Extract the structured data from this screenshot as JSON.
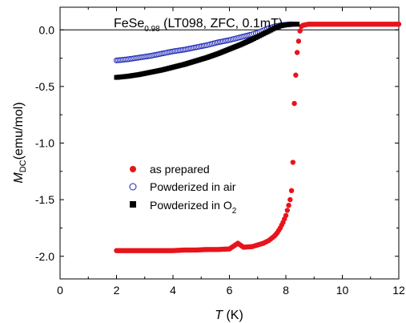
{
  "chart_data": {
    "type": "scatter",
    "title": {
      "base": "FeSe",
      "sub": "0.98",
      "rest": " (LT098, ZFC, 0.1mT)"
    },
    "xlabel": {
      "var": "T",
      "unit": " (K)"
    },
    "ylabel": {
      "var": "M",
      "sub": "DC",
      "unit": "(emu/mol)"
    },
    "xlim": [
      0,
      12
    ],
    "ylim": [
      -2.2,
      0.2
    ],
    "xticks": [
      0,
      2,
      4,
      6,
      8,
      10,
      12
    ],
    "xtick_labels": [
      "0",
      "2",
      "4",
      "6",
      "8",
      "10",
      "12"
    ],
    "yticks": [
      -2.0,
      -1.5,
      -1.0,
      -0.5,
      0.0
    ],
    "ytick_labels": [
      "-2.0",
      "-1.5",
      "-1.0",
      "-0.5",
      "0.0"
    ],
    "grid": false,
    "reference_line_y": 0,
    "legend_position": "center-left",
    "series": [
      {
        "name": "as prepared",
        "marker": "filled-circle",
        "color": "#e8141b",
        "x": [
          2.0,
          2.4,
          2.8,
          3.2,
          3.6,
          4.0,
          4.4,
          4.8,
          5.2,
          5.6,
          6.0,
          6.3,
          6.5,
          6.8,
          7.0,
          7.2,
          7.4,
          7.6,
          7.7,
          7.8,
          7.9,
          8.0,
          8.1,
          8.15,
          8.2,
          8.25,
          8.3,
          8.35,
          8.4,
          8.45,
          8.5,
          8.55,
          8.6,
          8.8,
          9.2,
          9.6,
          10.0,
          10.5,
          11.0,
          11.5,
          12.0
        ],
        "y": [
          -1.95,
          -1.95,
          -1.95,
          -1.95,
          -1.95,
          -1.95,
          -1.945,
          -1.945,
          -1.94,
          -1.94,
          -1.935,
          -1.885,
          -1.92,
          -1.915,
          -1.9,
          -1.885,
          -1.86,
          -1.82,
          -1.79,
          -1.75,
          -1.7,
          -1.64,
          -1.55,
          -1.5,
          -1.42,
          -1.17,
          -0.65,
          -0.4,
          -0.2,
          -0.1,
          -0.01,
          0.03,
          0.04,
          0.05,
          0.05,
          0.05,
          0.05,
          0.05,
          0.05,
          0.05,
          0.05
        ]
      },
      {
        "name": "Powderized in air",
        "marker": "open-circle",
        "color": "#1a23b5",
        "x": [
          2.0,
          2.4,
          2.8,
          3.2,
          3.6,
          4.0,
          4.4,
          4.8,
          5.2,
          5.6,
          6.0,
          6.4,
          6.8,
          7.0,
          7.2,
          7.4,
          7.6,
          7.8,
          8.0,
          8.2
        ],
        "y": [
          -0.27,
          -0.26,
          -0.245,
          -0.23,
          -0.21,
          -0.19,
          -0.175,
          -0.155,
          -0.135,
          -0.11,
          -0.09,
          -0.065,
          -0.04,
          -0.025,
          -0.005,
          0.015,
          0.03,
          0.04,
          0.045,
          0.05
        ]
      },
      {
        "name": "Powderized in O",
        "name_sub": "2",
        "marker": "filled-square",
        "color": "#000000",
        "x": [
          2.0,
          2.4,
          2.8,
          3.2,
          3.6,
          4.0,
          4.4,
          4.8,
          5.2,
          5.6,
          6.0,
          6.4,
          6.8,
          7.0,
          7.2,
          7.4,
          7.6,
          7.8,
          8.0,
          8.2,
          8.4
        ],
        "y": [
          -0.42,
          -0.41,
          -0.395,
          -0.375,
          -0.355,
          -0.33,
          -0.305,
          -0.275,
          -0.245,
          -0.21,
          -0.17,
          -0.13,
          -0.085,
          -0.06,
          -0.035,
          -0.01,
          0.015,
          0.035,
          0.045,
          0.05,
          0.05
        ]
      }
    ]
  }
}
